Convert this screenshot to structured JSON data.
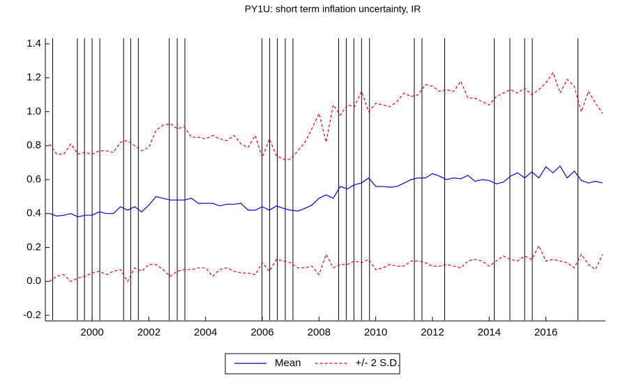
{
  "chart_data": {
    "type": "line",
    "title": "PY1U: short term inflation uncertainty, IR",
    "x": [
      1998.5,
      1998.75,
      1999,
      1999.25,
      1999.5,
      1999.75,
      2000,
      2000.25,
      2000.5,
      2000.75,
      2001,
      2001.25,
      2001.5,
      2001.75,
      2002,
      2002.25,
      2002.5,
      2002.75,
      2003,
      2003.25,
      2003.5,
      2003.75,
      2004,
      2004.25,
      2004.5,
      2004.75,
      2005,
      2005.25,
      2005.5,
      2005.75,
      2006,
      2006.25,
      2006.5,
      2006.75,
      2007,
      2007.25,
      2007.5,
      2007.75,
      2008,
      2008.25,
      2008.5,
      2008.75,
      2009,
      2009.25,
      2009.5,
      2009.75,
      2010,
      2010.25,
      2010.5,
      2010.75,
      2011,
      2011.25,
      2011.5,
      2011.75,
      2012,
      2012.25,
      2012.5,
      2012.75,
      2013,
      2013.25,
      2013.5,
      2013.75,
      2014,
      2014.25,
      2014.5,
      2014.75,
      2015,
      2015.25,
      2015.5,
      2015.75,
      2016,
      2016.25,
      2016.5,
      2016.75,
      2017,
      2017.25,
      2017.5,
      2017.75,
      2018
    ],
    "series": [
      {
        "name": "Mean",
        "color": "#0000cc",
        "values": [
          0.4,
          0.385,
          0.39,
          0.4,
          0.38,
          0.39,
          0.39,
          0.41,
          0.4,
          0.4,
          0.44,
          0.42,
          0.44,
          0.41,
          0.45,
          0.5,
          0.49,
          0.48,
          0.48,
          0.48,
          0.49,
          0.46,
          0.46,
          0.46,
          0.445,
          0.455,
          0.455,
          0.46,
          0.42,
          0.42,
          0.44,
          0.42,
          0.445,
          0.43,
          0.42,
          0.415,
          0.43,
          0.45,
          0.49,
          0.51,
          0.49,
          0.56,
          0.545,
          0.57,
          0.58,
          0.61,
          0.56,
          0.56,
          0.555,
          0.56,
          0.58,
          0.6,
          0.61,
          0.61,
          0.635,
          0.62,
          0.6,
          0.61,
          0.605,
          0.625,
          0.59,
          0.6,
          0.595,
          0.575,
          0.585,
          0.62,
          0.64,
          0.61,
          0.645,
          0.61,
          0.675,
          0.64,
          0.68,
          0.61,
          0.65,
          0.595,
          0.58,
          0.59,
          0.58
        ]
      },
      {
        "name": "+/- 2 S.D.",
        "color": "#ee0000",
        "dashed": true,
        "values": [
          0.81,
          0.75,
          0.75,
          0.81,
          0.75,
          0.76,
          0.75,
          0.77,
          0.77,
          0.76,
          0.82,
          0.83,
          0.8,
          0.77,
          0.79,
          0.89,
          0.92,
          0.93,
          0.9,
          0.91,
          0.85,
          0.85,
          0.84,
          0.86,
          0.84,
          0.83,
          0.86,
          0.81,
          0.79,
          0.86,
          0.73,
          0.84,
          0.74,
          0.72,
          0.72,
          0.77,
          0.82,
          0.9,
          0.99,
          0.82,
          1.04,
          0.98,
          1.04,
          1.03,
          1.12,
          1.0,
          1.05,
          1.04,
          1.03,
          1.06,
          1.11,
          1.09,
          1.1,
          1.16,
          1.15,
          1.12,
          1.13,
          1.12,
          1.18,
          1.08,
          1.08,
          1.06,
          1.04,
          1.09,
          1.11,
          1.13,
          1.11,
          1.14,
          1.1,
          1.13,
          1.17,
          1.23,
          1.11,
          1.19,
          1.15,
          1.0,
          1.12,
          1.05,
          0.99
        ],
        "lower": [
          0.0,
          0.03,
          0.04,
          0.0,
          0.02,
          0.03,
          0.05,
          0.06,
          0.04,
          0.06,
          0.07,
          0.0,
          0.08,
          0.06,
          0.1,
          0.1,
          0.07,
          0.03,
          0.06,
          0.07,
          0.07,
          0.08,
          0.08,
          0.03,
          0.07,
          0.08,
          0.06,
          0.05,
          0.05,
          0.04,
          0.11,
          0.06,
          0.13,
          0.12,
          0.11,
          0.08,
          0.08,
          0.09,
          0.04,
          0.16,
          0.08,
          0.1,
          0.1,
          0.12,
          0.11,
          0.13,
          0.07,
          0.08,
          0.1,
          0.09,
          0.09,
          0.12,
          0.12,
          0.11,
          0.09,
          0.09,
          0.1,
          0.09,
          0.08,
          0.12,
          0.13,
          0.12,
          0.09,
          0.12,
          0.15,
          0.13,
          0.12,
          0.15,
          0.13,
          0.21,
          0.12,
          0.13,
          0.12,
          0.11,
          0.08,
          0.16,
          0.1,
          0.07,
          0.16
        ]
      }
    ],
    "vlines": [
      1998.61,
      1999.48,
      1999.73,
      2000.0,
      2000.27,
      2001.11,
      2001.36,
      2001.63,
      2002.72,
      2003.0,
      2003.27,
      2005.99,
      2006.26,
      2006.53,
      2006.81,
      2007.08,
      2008.69,
      2008.96,
      2009.23,
      2009.5,
      2009.78,
      2011.36,
      2011.63,
      2012.43,
      2014.18,
      2014.73,
      2015.25,
      2015.52,
      2017.13
    ],
    "xlim": [
      1998.35,
      2018.1
    ],
    "xticks": [
      2000,
      2002,
      2004,
      2006,
      2008,
      2010,
      2012,
      2014,
      2016
    ],
    "ylim": [
      -0.2,
      1.4
    ],
    "yticks": [
      -0.2,
      {
        "value": 0,
        "label": "0.0"
      },
      0.2,
      0.4,
      0.6,
      0.8,
      {
        "value": 1,
        "label": "1.0"
      },
      1.2,
      1.4
    ]
  }
}
